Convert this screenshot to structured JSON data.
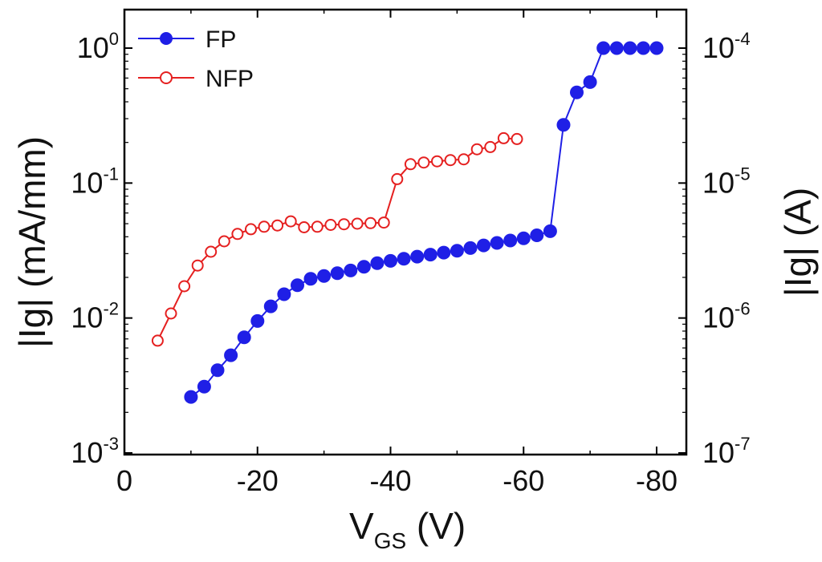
{
  "chart_data": {
    "type": "line",
    "y_scale": "log",
    "xlabel_main": "V",
    "xlabel_sub": "GS",
    "xlabel_unit": " (V)",
    "ylabel_left": "|Ig| (mA/mm)",
    "ylabel_right": "|Ig| (A)",
    "xlim": [
      0,
      -84
    ],
    "ylim": [
      0.001,
      1.6
    ],
    "x_ticks": [
      {
        "value": 0,
        "label": "0"
      },
      {
        "value": -20,
        "label": "-20"
      },
      {
        "value": -40,
        "label": "-40"
      },
      {
        "value": -60,
        "label": "-60"
      },
      {
        "value": -80,
        "label": "-80"
      }
    ],
    "y_ticks_left": [
      {
        "value": 1,
        "base": "10",
        "exp": "0"
      },
      {
        "value": 0.1,
        "base": "10",
        "exp": "-1"
      },
      {
        "value": 0.01,
        "base": "10",
        "exp": "-2"
      },
      {
        "value": 0.001,
        "base": "10",
        "exp": "-3"
      }
    ],
    "y_ticks_right": [
      {
        "value": 1,
        "base": "10",
        "exp": "-4"
      },
      {
        "value": 0.1,
        "base": "10",
        "exp": "-5"
      },
      {
        "value": 0.01,
        "base": "10",
        "exp": "-6"
      },
      {
        "value": 0.001,
        "base": "10",
        "exp": "-7"
      }
    ],
    "legend_position": "top-left",
    "series": [
      {
        "name": "FP",
        "color": "#1f1fe6",
        "marker": "filled-circle",
        "x": [
          -10,
          -12,
          -14,
          -16,
          -18,
          -20,
          -22,
          -24,
          -26,
          -28,
          -30,
          -32,
          -34,
          -36,
          -38,
          -40,
          -42,
          -44,
          -46,
          -48,
          -50,
          -52,
          -54,
          -56,
          -58,
          -60,
          -62,
          -64,
          -66,
          -68,
          -70,
          -72,
          -74,
          -76,
          -78,
          -80
        ],
        "y": [
          0.0026,
          0.0031,
          0.0041,
          0.0053,
          0.0072,
          0.0095,
          0.0122,
          0.015,
          0.0175,
          0.0195,
          0.0205,
          0.0215,
          0.0225,
          0.024,
          0.0255,
          0.0265,
          0.0275,
          0.0285,
          0.0295,
          0.0305,
          0.0315,
          0.033,
          0.0345,
          0.036,
          0.0375,
          0.039,
          0.041,
          0.044,
          0.27,
          0.47,
          0.56,
          1.0,
          1.0,
          1.0,
          1.0,
          1.0
        ]
      },
      {
        "name": "NFP",
        "color": "#e52020",
        "marker": "open-circle",
        "x": [
          -5,
          -7,
          -9,
          -11,
          -13,
          -15,
          -17,
          -19,
          -21,
          -23,
          -25,
          -27,
          -29,
          -31,
          -33,
          -35,
          -37,
          -39,
          -41,
          -43,
          -45,
          -47,
          -49,
          -51,
          -53,
          -55,
          -57,
          -59
        ],
        "y": [
          0.0068,
          0.0108,
          0.0172,
          0.0245,
          0.031,
          0.037,
          0.042,
          0.0455,
          0.0475,
          0.0485,
          0.052,
          0.047,
          0.0475,
          0.049,
          0.0495,
          0.05,
          0.0505,
          0.051,
          0.107,
          0.138,
          0.142,
          0.145,
          0.148,
          0.15,
          0.178,
          0.185,
          0.215,
          0.212
        ]
      }
    ]
  }
}
